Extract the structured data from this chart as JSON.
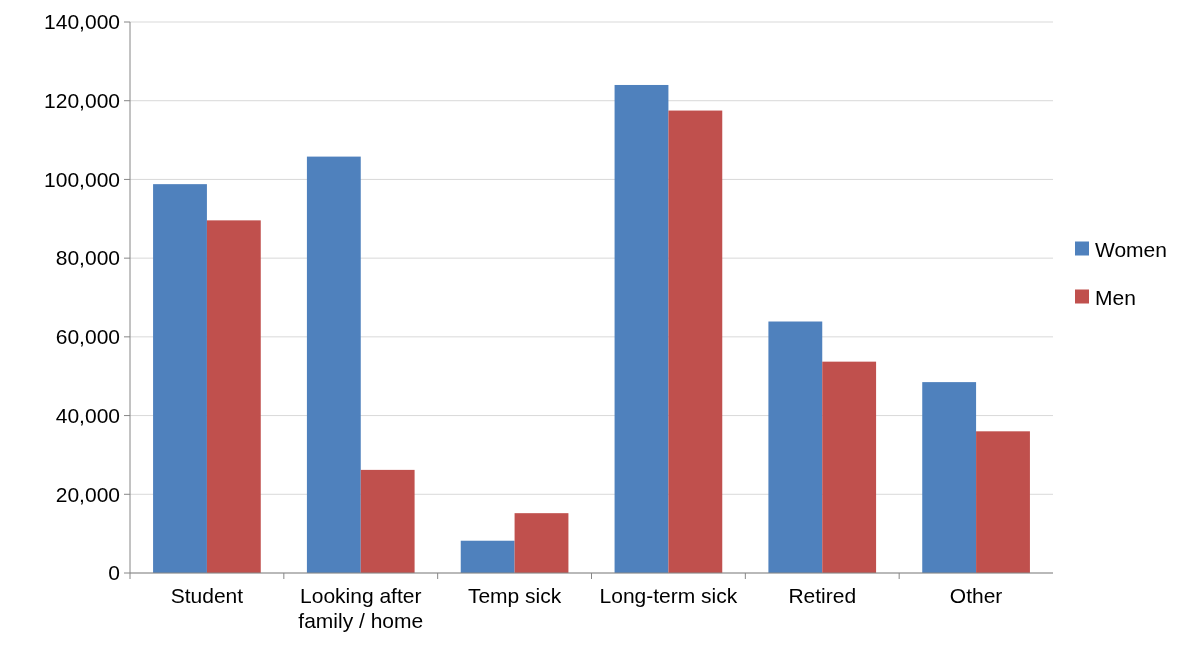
{
  "chart_data": {
    "type": "bar",
    "categories": [
      "Student",
      "Looking after family / home",
      "Temp sick",
      "Long-term sick",
      "Retired",
      "Other"
    ],
    "series": [
      {
        "name": "Women",
        "color": "#4f81bd",
        "values": [
          98800,
          105800,
          8200,
          124000,
          63900,
          48500
        ]
      },
      {
        "name": "Men",
        "color": "#c0504d",
        "values": [
          89600,
          26200,
          15200,
          117500,
          53700,
          36000
        ]
      }
    ],
    "ylim": [
      0,
      140000
    ],
    "yticks": [
      {
        "value": 0,
        "label": "0"
      },
      {
        "value": 20000,
        "label": "20,000"
      },
      {
        "value": 40000,
        "label": "40,000"
      },
      {
        "value": 60000,
        "label": "60,000"
      },
      {
        "value": 80000,
        "label": "80,000"
      },
      {
        "value": 100000,
        "label": "100,000"
      },
      {
        "value": 120000,
        "label": "120,000"
      },
      {
        "value": 140000,
        "label": "140,000"
      }
    ],
    "grid": "y",
    "legend": "right"
  }
}
